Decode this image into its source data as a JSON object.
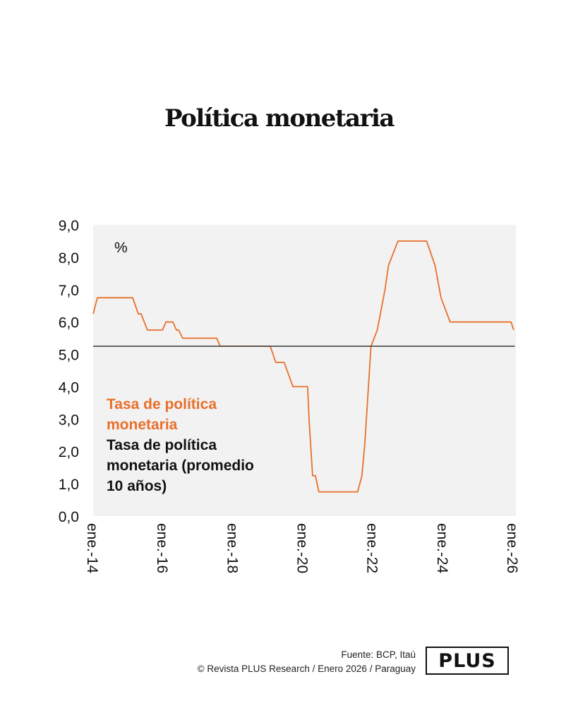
{
  "title": "Política monetaria",
  "chart_data": {
    "type": "line",
    "title": "Política monetaria",
    "unit_label": "%",
    "xlabel": "",
    "ylabel": "",
    "xlim": [
      2014.0,
      2026.05
    ],
    "ylim": [
      0,
      9
    ],
    "y_ticks": [
      0,
      1,
      2,
      3,
      4,
      5,
      6,
      7,
      8,
      9
    ],
    "y_tick_labels": [
      "0,0",
      "1,0",
      "2,0",
      "3,0",
      "4,0",
      "5,0",
      "6,0",
      "7,0",
      "8,0",
      "9,0"
    ],
    "x_ticks": [
      2014,
      2016,
      2018,
      2020,
      2022,
      2024,
      2026
    ],
    "x_tick_labels": [
      "ene.-14",
      "ene.-16",
      "ene.-18",
      "ene.-20",
      "ene.-22",
      "ene.-24",
      "ene.-26"
    ],
    "grid": false,
    "legend_placement": "lower-left (inside plot)",
    "series": [
      {
        "name": "Tasa de política monetaria",
        "legend_lines": [
          "Tasa de política",
          "monetaria"
        ],
        "color": "#E8702A",
        "x": [
          2014.0,
          2014.12,
          2015.13,
          2015.29,
          2015.37,
          2015.55,
          2015.98,
          2016.08,
          2016.28,
          2016.38,
          2016.44,
          2016.56,
          2017.53,
          2017.63,
          2019.06,
          2019.22,
          2019.46,
          2019.71,
          2020.13,
          2020.17,
          2020.27,
          2020.35,
          2020.45,
          2021.56,
          2021.68,
          2021.76,
          2021.94,
          2022.12,
          2022.34,
          2022.44,
          2022.71,
          2023.53,
          2023.77,
          2023.94,
          2024.2,
          2025.94,
          2026.02
        ],
        "values": [
          6.25,
          6.75,
          6.75,
          6.25,
          6.25,
          5.75,
          5.75,
          6.0,
          6.0,
          5.75,
          5.75,
          5.5,
          5.5,
          5.25,
          5.25,
          4.75,
          4.75,
          4.0,
          4.0,
          3.0,
          1.25,
          1.25,
          0.75,
          0.75,
          1.25,
          2.2,
          5.25,
          5.75,
          7.0,
          7.75,
          8.5,
          8.5,
          7.75,
          6.75,
          6.0,
          6.0,
          5.75
        ]
      },
      {
        "name": "Tasa de política monetaria (promedio 10 años)",
        "legend_lines": [
          "Tasa de política",
          "monetaria (promedio",
          "10 años)"
        ],
        "color": "#444444",
        "x": [
          2014.0,
          2026.05
        ],
        "values": [
          5.25,
          5.25
        ]
      }
    ]
  },
  "footer": {
    "source": "Fuente: BCP, Itaú",
    "credit": "© Revista PLUS Research / Enero 2026 / Paraguay",
    "logo": "PLUS"
  }
}
